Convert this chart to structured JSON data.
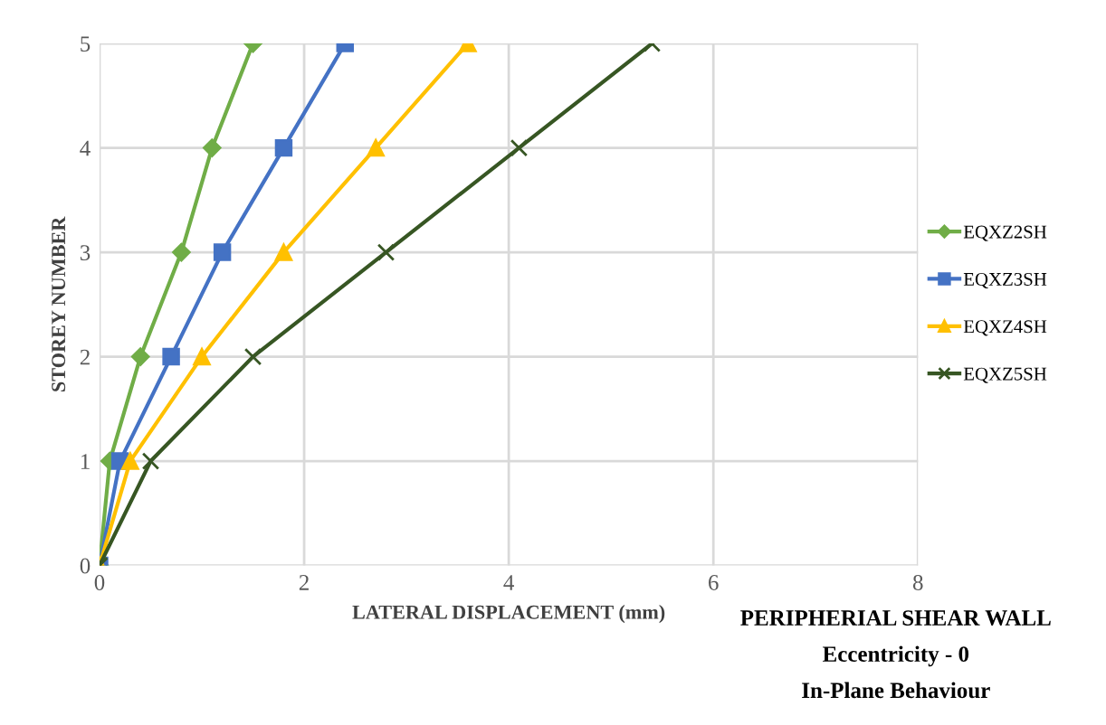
{
  "chart_data": {
    "type": "line",
    "xlabel": "LATERAL DISPLACEMENT (mm)",
    "ylabel": "STOREY NUMBER",
    "annotations": [
      "PERIPHERIAL SHEAR WALL",
      "Eccentricity - 0",
      "In-Plane Behaviour"
    ],
    "xlim": [
      0,
      8
    ],
    "xticks": [
      0,
      2,
      4,
      6,
      8
    ],
    "ylim": [
      0,
      5
    ],
    "yticks": [
      0,
      1,
      2,
      3,
      4,
      5
    ],
    "grid": true,
    "legend": "right",
    "series": [
      {
        "name": "EQXZ2SH",
        "color": "#70ad47",
        "marker": "diamond",
        "x": [
          0,
          0.1,
          0.4,
          0.8,
          1.1,
          1.5
        ],
        "values": [
          0,
          1,
          2,
          3,
          4,
          5
        ]
      },
      {
        "name": "EQXZ3SH",
        "color": "#4472c4",
        "marker": "square",
        "x": [
          0,
          0.2,
          0.7,
          1.2,
          1.8,
          2.4
        ],
        "values": [
          0,
          1,
          2,
          3,
          4,
          5
        ]
      },
      {
        "name": "EQXZ4SH",
        "color": "#ffc000",
        "marker": "triangle",
        "x": [
          0,
          0.3,
          1.0,
          1.8,
          2.7,
          3.6
        ],
        "values": [
          0,
          1,
          2,
          3,
          4,
          5
        ]
      },
      {
        "name": "EQXZ5SH",
        "color": "#375623",
        "marker": "cross",
        "x": [
          0,
          0.5,
          1.5,
          2.8,
          4.1,
          5.4
        ],
        "values": [
          0,
          1,
          2,
          3,
          4,
          5
        ]
      }
    ]
  }
}
